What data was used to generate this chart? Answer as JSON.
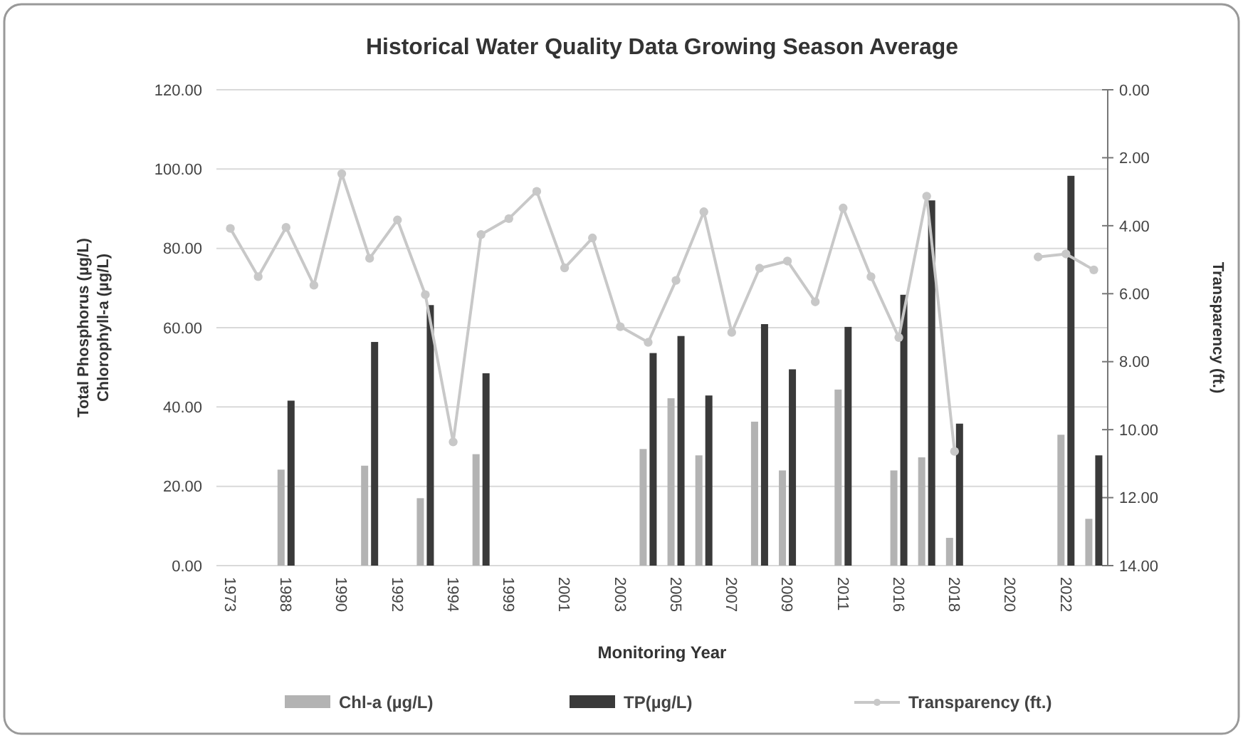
{
  "chart_data": {
    "type": "bar",
    "title": "Historical Water Quality Data Growing Season Average",
    "xlabel": "Monitoring Year",
    "ylabel": "Total Phosphorus (µg/L)\nChlorophyll-a (µg/L)",
    "y2label": "Transparency (ft.)",
    "categories": [
      "1973",
      null,
      "1988",
      null,
      "1990",
      null,
      "1992",
      null,
      "1994",
      null,
      "1999",
      null,
      "2001",
      null,
      "2003",
      null,
      "2005",
      null,
      "2007",
      null,
      "2009",
      null,
      "2011",
      null,
      "2016",
      null,
      "2018",
      null,
      "2020",
      null,
      "2022",
      null
    ],
    "series": [
      {
        "name": "Chl-a (µg/L)",
        "color": "#b3b3b3",
        "values": [
          null,
          null,
          24.2,
          null,
          null,
          25.2,
          null,
          17.0,
          null,
          28.1,
          null,
          null,
          null,
          null,
          null,
          29.4,
          42.2,
          27.8,
          null,
          36.3,
          24.0,
          null,
          44.4,
          null,
          24.0,
          27.3,
          7.0,
          null,
          null,
          null,
          33.0,
          11.8
        ]
      },
      {
        "name": "TP(µg/L)",
        "color": "#3a3a3a",
        "values": [
          null,
          null,
          41.6,
          null,
          null,
          56.4,
          null,
          65.7,
          null,
          48.5,
          null,
          null,
          null,
          null,
          null,
          53.6,
          57.9,
          42.9,
          null,
          60.9,
          49.5,
          null,
          60.2,
          null,
          68.3,
          92.1,
          35.8,
          null,
          null,
          null,
          98.3,
          27.8
        ]
      },
      {
        "name": "Transparency (ft.)",
        "type": "line",
        "axis": "y2",
        "color": "#c8c8c8",
        "values": [
          4.08,
          5.5,
          4.05,
          5.75,
          2.47,
          4.96,
          3.83,
          6.03,
          10.36,
          4.26,
          3.79,
          2.99,
          5.24,
          4.36,
          6.97,
          7.43,
          5.61,
          3.59,
          7.14,
          5.25,
          5.04,
          6.24,
          3.48,
          5.5,
          7.29,
          3.13,
          10.64,
          null,
          null,
          4.92,
          4.83,
          5.3
        ]
      }
    ],
    "ylim": [
      0,
      120
    ],
    "yticks": [
      {
        "value": 0,
        "label": "0.00"
      },
      {
        "value": 20,
        "label": "20.00"
      },
      {
        "value": 40,
        "label": "40.00"
      },
      {
        "value": 60,
        "label": "60.00"
      },
      {
        "value": 80,
        "label": "80.00"
      },
      {
        "value": 100,
        "label": "100.00"
      },
      {
        "value": 120,
        "label": "120.00"
      }
    ],
    "y2lim": [
      14,
      0
    ],
    "y2ticks": [
      {
        "value": 0,
        "label": "0.00"
      },
      {
        "value": 2,
        "label": "2.00"
      },
      {
        "value": 4,
        "label": "4.00"
      },
      {
        "value": 6,
        "label": "6.00"
      },
      {
        "value": 8,
        "label": "8.00"
      },
      {
        "value": 10,
        "label": "10.00"
      },
      {
        "value": 12,
        "label": "12.00"
      },
      {
        "value": 14,
        "label": "14.00"
      }
    ],
    "grid": "y",
    "legend": "bottom",
    "marker": "circle",
    "line_style": "solid"
  }
}
